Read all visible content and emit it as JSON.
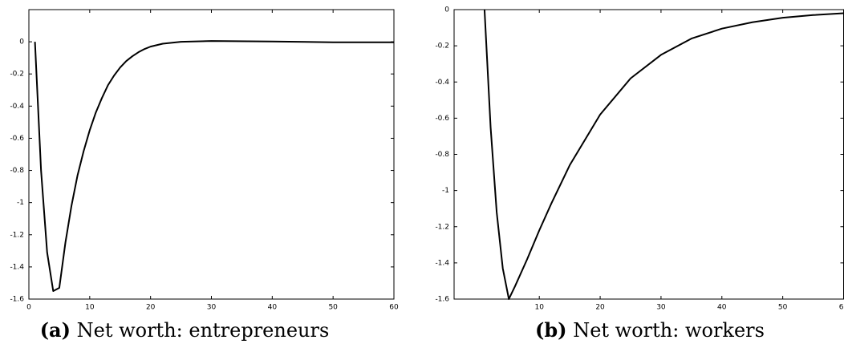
{
  "chart_data": [
    {
      "type": "line",
      "caption_label": "(a)",
      "caption": "Net worth: entrepreneurs",
      "xlim": [
        0,
        60
      ],
      "xticks": [
        0,
        10,
        20,
        30,
        40,
        50,
        60
      ],
      "ylim": [
        -1.6,
        0.2
      ],
      "yticks": [
        -1.6,
        -1.4,
        -1.2,
        -1,
        -0.8,
        -0.6,
        -0.4,
        -0.2,
        0
      ],
      "color": "#000000",
      "x": [
        1,
        2,
        3,
        4,
        5,
        6,
        7,
        8,
        9,
        10,
        11,
        12,
        13,
        14,
        15,
        16,
        17,
        18,
        19,
        20,
        22,
        25,
        30,
        40,
        50,
        60
      ],
      "values": [
        0,
        -0.8,
        -1.31,
        -1.55,
        -1.53,
        -1.25,
        -1.02,
        -0.83,
        -0.68,
        -0.55,
        -0.44,
        -0.35,
        -0.27,
        -0.21,
        -0.16,
        -0.12,
        -0.09,
        -0.065,
        -0.045,
        -0.03,
        -0.012,
        0,
        0.005,
        0.002,
        -0.003,
        -0.003
      ]
    },
    {
      "type": "line",
      "caption_label": "(b)",
      "caption": "Net worth: workers",
      "xlim": [
        -4,
        60
      ],
      "xticks": [
        10,
        20,
        30,
        40,
        50,
        60
      ],
      "ylim": [
        -1.6,
        0
      ],
      "yticks": [
        -1.6,
        -1.4,
        -1.2,
        -1,
        -0.8,
        -0.6,
        -0.4,
        -0.2,
        0
      ],
      "color": "#000000",
      "x": [
        1,
        2,
        3,
        4,
        5,
        6,
        8,
        10,
        12,
        15,
        20,
        25,
        30,
        35,
        40,
        45,
        50,
        55,
        60
      ],
      "values": [
        0,
        -0.65,
        -1.12,
        -1.43,
        -1.6,
        -1.53,
        -1.38,
        -1.22,
        -1.07,
        -0.86,
        -0.58,
        -0.38,
        -0.25,
        -0.16,
        -0.105,
        -0.07,
        -0.045,
        -0.03,
        -0.02
      ]
    }
  ]
}
